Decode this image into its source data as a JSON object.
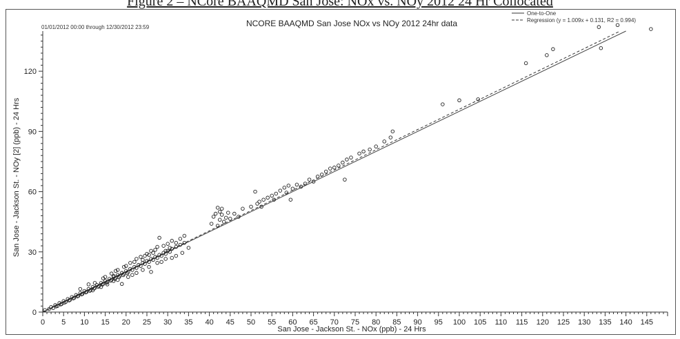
{
  "figure": {
    "caption": "Figure 2 – NCore BAAQMD San Jose: NOx vs. NOy 2012 24 Hr Collocated"
  },
  "chart_data": {
    "type": "scatter",
    "title": "NCORE BAAQMD San Jose NOx vs NOy 2012 24hr data",
    "date_range": "01/01/2012 00:00 through 12/30/2012 23:59",
    "xlabel": "San Jose - Jackson St. - NOx (ppb) - 24 Hrs",
    "ylabel": "San Jose - Jackson St. - NOy [2] (ppb) - 24 Hrs",
    "xlim": [
      0,
      150
    ],
    "ylim": [
      0,
      140
    ],
    "x_ticks": [
      0,
      5,
      10,
      15,
      20,
      25,
      30,
      35,
      40,
      45,
      50,
      55,
      60,
      65,
      70,
      75,
      80,
      85,
      90,
      95,
      100,
      105,
      110,
      115,
      120,
      125,
      130,
      135,
      140,
      145
    ],
    "y_ticks": [
      0,
      30,
      60,
      90,
      120
    ],
    "legend_position": "top-right",
    "legend": [
      {
        "label": "One-to-One",
        "style": "solid"
      },
      {
        "label": "Regression (y = 1.009x + 0.131, R2 = 0.994)",
        "style": "dashed"
      }
    ],
    "regression": {
      "slope": 1.009,
      "intercept": 0.131,
      "r2": 0.994
    },
    "series": [
      {
        "marker": "open-circle",
        "color": "#222222",
        "points": [
          [
            0.5,
            1.0
          ],
          [
            1.5,
            1.5
          ],
          [
            2.0,
            2.5
          ],
          [
            2.5,
            2.0
          ],
          [
            3.0,
            3.5
          ],
          [
            3.2,
            2.8
          ],
          [
            3.5,
            3.0
          ],
          [
            4.0,
            4.5
          ],
          [
            4.3,
            3.8
          ],
          [
            4.5,
            4.0
          ],
          [
            5.0,
            5.5
          ],
          [
            5.2,
            4.7
          ],
          [
            5.5,
            5.0
          ],
          [
            6.0,
            6.5
          ],
          [
            6.3,
            5.8
          ],
          [
            6.5,
            6.0
          ],
          [
            7.0,
            7.5
          ],
          [
            7.3,
            6.8
          ],
          [
            7.5,
            7.0
          ],
          [
            8.0,
            8.5
          ],
          [
            8.3,
            7.8
          ],
          [
            8.5,
            8.0
          ],
          [
            9.0,
            9.5
          ],
          [
            9.3,
            8.8
          ],
          [
            9.5,
            9.0
          ],
          [
            10.0,
            10.5
          ],
          [
            10.3,
            9.8
          ],
          [
            10.5,
            10.0
          ],
          [
            11.0,
            11.5
          ],
          [
            11.3,
            10.6
          ],
          [
            11.5,
            11.0
          ],
          [
            12.0,
            12.5
          ],
          [
            12.3,
            11.7
          ],
          [
            12.5,
            12.0
          ],
          [
            13.0,
            13.5
          ],
          [
            13.3,
            12.6
          ],
          [
            13.5,
            13.0
          ],
          [
            14.0,
            14.5
          ],
          [
            14.3,
            13.7
          ],
          [
            14.5,
            14.0
          ],
          [
            15.0,
            15.5
          ],
          [
            15.3,
            14.6
          ],
          [
            15.5,
            15.0
          ],
          [
            16.0,
            16.5
          ],
          [
            16.3,
            15.6
          ],
          [
            16.5,
            16.0
          ],
          [
            17.0,
            17.5
          ],
          [
            17.3,
            16.5
          ],
          [
            17.5,
            17.0
          ],
          [
            18.0,
            18.5
          ],
          [
            18.3,
            17.4
          ],
          [
            18.5,
            18.0
          ],
          [
            19.0,
            19.5
          ],
          [
            19.3,
            18.4
          ],
          [
            19.5,
            19.0
          ],
          [
            20.0,
            20.5
          ],
          [
            20.3,
            19.4
          ],
          [
            20.5,
            20.0
          ],
          [
            21.0,
            21.5
          ],
          [
            21.5,
            21.0
          ],
          [
            22.0,
            22.5
          ],
          [
            22.5,
            22.0
          ],
          [
            23.0,
            23.5
          ],
          [
            23.5,
            23.0
          ],
          [
            24.0,
            24.5
          ],
          [
            24.5,
            24.0
          ],
          [
            25.0,
            25.5
          ],
          [
            25.5,
            25.0
          ],
          [
            26.0,
            26.5
          ],
          [
            26.5,
            26.0
          ],
          [
            27.0,
            27.5
          ],
          [
            27.5,
            27.0
          ],
          [
            28.0,
            28.5
          ],
          [
            28.5,
            28.0
          ],
          [
            29.0,
            29.5
          ],
          [
            29.5,
            29.0
          ],
          [
            30.0,
            30.5
          ],
          [
            30.5,
            30.0
          ],
          [
            31.0,
            31.5
          ],
          [
            32.0,
            32.5
          ],
          [
            33.0,
            33.5
          ],
          [
            34.0,
            34.5
          ],
          [
            9.0,
            11.5
          ],
          [
            11.0,
            13.8
          ],
          [
            12.5,
            14.5
          ],
          [
            14.5,
            16.8
          ],
          [
            15.0,
            17.5
          ],
          [
            16.5,
            19.2
          ],
          [
            17.0,
            18.0
          ],
          [
            17.5,
            20.5
          ],
          [
            18.0,
            21.0
          ],
          [
            19.5,
            22.5
          ],
          [
            20.0,
            23.0
          ],
          [
            21.0,
            24.5
          ],
          [
            22.0,
            25.0
          ],
          [
            22.5,
            26.5
          ],
          [
            23.5,
            27.5
          ],
          [
            24.0,
            26.0
          ],
          [
            24.5,
            28.0
          ],
          [
            25.0,
            29.0
          ],
          [
            25.5,
            28.5
          ],
          [
            26.0,
            30.5
          ],
          [
            26.5,
            29.5
          ],
          [
            27.0,
            31.0
          ],
          [
            27.5,
            32.5
          ],
          [
            28.0,
            37.0
          ],
          [
            29.0,
            33.0
          ],
          [
            29.5,
            30.5
          ],
          [
            30.0,
            34.0
          ],
          [
            30.5,
            32.0
          ],
          [
            31.0,
            35.5
          ],
          [
            32.0,
            34.5
          ],
          [
            33.0,
            36.5
          ],
          [
            34.0,
            38.0
          ],
          [
            12.0,
            10.8
          ],
          [
            14.0,
            12.5
          ],
          [
            15.5,
            13.8
          ],
          [
            17.0,
            15.5
          ],
          [
            18.0,
            16.0
          ],
          [
            19.0,
            14.0
          ],
          [
            20.5,
            17.5
          ],
          [
            21.5,
            18.5
          ],
          [
            22.5,
            19.5
          ],
          [
            24.0,
            21.0
          ],
          [
            25.5,
            22.5
          ],
          [
            26.0,
            20.0
          ],
          [
            27.5,
            24.5
          ],
          [
            28.5,
            25.0
          ],
          [
            29.5,
            26.5
          ],
          [
            31.0,
            27.0
          ],
          [
            32.0,
            28.0
          ],
          [
            33.5,
            29.5
          ],
          [
            35.0,
            32.0
          ],
          [
            40.5,
            44.0
          ],
          [
            41.0,
            47.5
          ],
          [
            41.5,
            49.0
          ],
          [
            42.0,
            52.0
          ],
          [
            42.5,
            50.0
          ],
          [
            42.5,
            46.0
          ],
          [
            43.0,
            48.5
          ],
          [
            43.0,
            51.5
          ],
          [
            43.5,
            45.0
          ],
          [
            44.0,
            47.0
          ],
          [
            44.5,
            49.5
          ],
          [
            45.0,
            46.5
          ],
          [
            42.0,
            43.0
          ],
          [
            46.0,
            49.0
          ],
          [
            47.0,
            47.5
          ],
          [
            48.0,
            51.5
          ],
          [
            50.0,
            52.5
          ],
          [
            51.0,
            60.0
          ],
          [
            51.5,
            54.0
          ],
          [
            52.0,
            55.0
          ],
          [
            52.5,
            52.5
          ],
          [
            53.0,
            56.0
          ],
          [
            54.0,
            57.0
          ],
          [
            55.0,
            58.0
          ],
          [
            55.5,
            56.0
          ],
          [
            56.0,
            59.0
          ],
          [
            57.0,
            60.5
          ],
          [
            58.0,
            62.0
          ],
          [
            58.5,
            59.5
          ],
          [
            59.0,
            63.0
          ],
          [
            59.5,
            56.0
          ],
          [
            60.0,
            61.5
          ],
          [
            61.0,
            63.5
          ],
          [
            62.0,
            62.5
          ],
          [
            63.0,
            64.0
          ],
          [
            64.0,
            66.0
          ],
          [
            65.0,
            65.0
          ],
          [
            66.0,
            67.5
          ],
          [
            67.0,
            68.5
          ],
          [
            68.0,
            70.0
          ],
          [
            69.0,
            71.5
          ],
          [
            70.0,
            72.0
          ],
          [
            71.0,
            73.0
          ],
          [
            72.0,
            74.5
          ],
          [
            72.5,
            66.0
          ],
          [
            73.0,
            76.0
          ],
          [
            74.0,
            77.0
          ],
          [
            76.0,
            79.0
          ],
          [
            77.0,
            80.0
          ],
          [
            78.5,
            81.0
          ],
          [
            80.0,
            82.5
          ],
          [
            82.0,
            85.0
          ],
          [
            83.5,
            87.0
          ],
          [
            84.0,
            90.0
          ],
          [
            96.0,
            103.5
          ],
          [
            100.0,
            105.5
          ],
          [
            104.5,
            106.0
          ],
          [
            116.0,
            124.0
          ],
          [
            121.0,
            128.0
          ],
          [
            122.5,
            131.0
          ],
          [
            133.5,
            142.0
          ],
          [
            134.0,
            131.5
          ],
          [
            138.0,
            143.0
          ],
          [
            146.0,
            141.0
          ]
        ]
      }
    ]
  }
}
